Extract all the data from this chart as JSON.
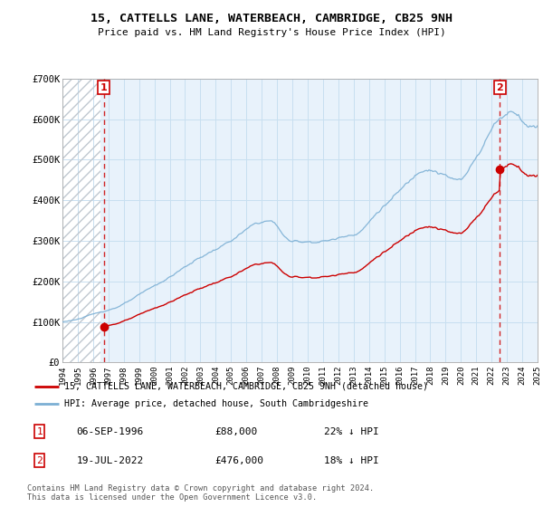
{
  "title": "15, CATTELLS LANE, WATERBEACH, CAMBRIDGE, CB25 9NH",
  "subtitle": "Price paid vs. HM Land Registry's House Price Index (HPI)",
  "property_label": "15, CATTELLS LANE, WATERBEACH, CAMBRIDGE, CB25 9NH (detached house)",
  "hpi_label": "HPI: Average price, detached house, South Cambridgeshire",
  "transaction1_date": "06-SEP-1996",
  "transaction1_price": "£88,000",
  "transaction1_hpi": "22% ↓ HPI",
  "transaction2_date": "19-JUL-2022",
  "transaction2_price": "£476,000",
  "transaction2_hpi": "18% ↓ HPI",
  "footer": "Contains HM Land Registry data © Crown copyright and database right 2024.\nThis data is licensed under the Open Government Licence v3.0.",
  "property_color": "#cc0000",
  "hpi_color": "#7bafd4",
  "marker1_x": 1996.69,
  "marker1_y": 88000,
  "marker2_x": 2022.54,
  "marker2_y": 476000,
  "xmin": 1994,
  "xmax": 2025,
  "ymin": 0,
  "ymax": 700000,
  "yticks": [
    0,
    100000,
    200000,
    300000,
    400000,
    500000,
    600000,
    700000
  ],
  "ytick_labels": [
    "£0",
    "£100K",
    "£200K",
    "£300K",
    "£400K",
    "£500K",
    "£600K",
    "£700K"
  ],
  "xticks": [
    1994,
    1995,
    1996,
    1997,
    1998,
    1999,
    2000,
    2001,
    2002,
    2003,
    2004,
    2005,
    2006,
    2007,
    2008,
    2009,
    2010,
    2011,
    2012,
    2013,
    2014,
    2015,
    2016,
    2017,
    2018,
    2019,
    2020,
    2021,
    2022,
    2023,
    2024,
    2025
  ],
  "background_hatched_end": 1996.5,
  "grid_color": "#c8dff0",
  "plot_bg": "#e8f2fb",
  "hatch_color": "#c0c8d0"
}
